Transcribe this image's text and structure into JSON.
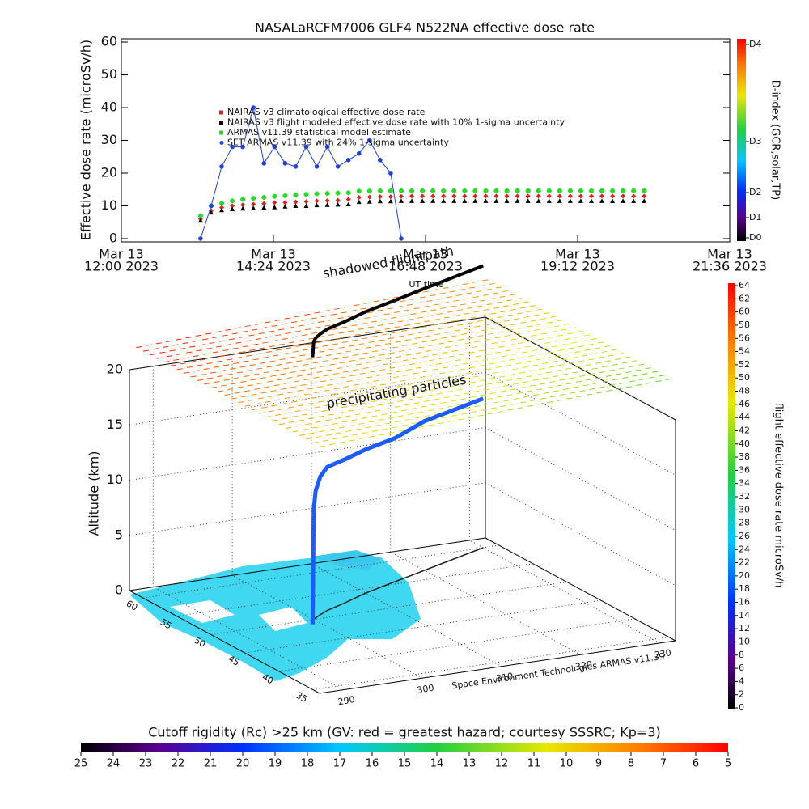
{
  "chart_data": [
    {
      "type": "line",
      "title": "NASALaRCFM7006  GLF4 N522NA effective dose rate",
      "y_label": "Effective dose rate (microSv/h)",
      "x": [
        "2023-03-13T13:15",
        "2023-03-13T13:25",
        "2023-03-13T13:35",
        "2023-03-13T13:45",
        "2023-03-13T13:55",
        "2023-03-13T14:05",
        "2023-03-13T14:15",
        "2023-03-13T14:25",
        "2023-03-13T14:35",
        "2023-03-13T14:45",
        "2023-03-13T14:55",
        "2023-03-13T15:05",
        "2023-03-13T15:15",
        "2023-03-13T15:25",
        "2023-03-13T15:35",
        "2023-03-13T15:45",
        "2023-03-13T15:55",
        "2023-03-13T16:05",
        "2023-03-13T16:15",
        "2023-03-13T16:25",
        "2023-03-13T16:35",
        "2023-03-13T16:45",
        "2023-03-13T16:55",
        "2023-03-13T17:05",
        "2023-03-13T17:15",
        "2023-03-13T17:25",
        "2023-03-13T17:35",
        "2023-03-13T17:45",
        "2023-03-13T17:55",
        "2023-03-13T18:05",
        "2023-03-13T18:15",
        "2023-03-13T18:25",
        "2023-03-13T18:35",
        "2023-03-13T18:45",
        "2023-03-13T18:55",
        "2023-03-13T19:05",
        "2023-03-13T19:15",
        "2023-03-13T19:25",
        "2023-03-13T19:35",
        "2023-03-13T19:45",
        "2023-03-13T19:55",
        "2023-03-13T20:05",
        "2023-03-13T20:15"
      ],
      "xlim": [
        "2023-03-13T12:00",
        "2023-03-13T21:36"
      ],
      "xticks": [
        {
          "value": "2023-03-13T12:00",
          "label": [
            "Mar 13",
            "12:00 2023"
          ]
        },
        {
          "value": "2023-03-13T14:24",
          "label": [
            "Mar 13",
            "14:24 2023"
          ]
        },
        {
          "value": "2023-03-13T16:48",
          "label": [
            "Mar 13",
            "16:48 2023"
          ]
        },
        {
          "value": "2023-03-13T19:12",
          "label": [
            "Mar 13",
            "19:12 2023"
          ]
        },
        {
          "value": "2023-03-13T21:36",
          "label": [
            "Mar 13",
            "21:36 2023"
          ]
        }
      ],
      "ylim": [
        -1,
        61
      ],
      "yticks": [
        0,
        10,
        20,
        30,
        40,
        50,
        60
      ],
      "series": [
        {
          "name": "NAIRAS v3 climatological effective dose rate",
          "color": "#e02020",
          "marker": "diamond",
          "values": [
            6,
            8.5,
            9.5,
            10,
            10.3,
            10.5,
            10.7,
            11,
            11,
            11.2,
            11.3,
            11.5,
            11.6,
            11.7,
            12,
            12.6,
            12.7,
            12.8,
            12.8,
            12.9,
            13,
            13,
            13,
            13,
            13,
            13,
            13,
            13,
            13,
            13,
            13,
            13,
            13,
            13,
            13,
            13,
            13,
            13,
            13,
            13,
            13,
            13,
            13
          ]
        },
        {
          "name": "NAIRAS v3 flight modeled effective dose rate with 10% 1-sigma uncertainty",
          "color": "#000000",
          "marker": "triangle",
          "values": [
            5.5,
            8,
            8.7,
            9,
            9.2,
            9.3,
            9.5,
            9.6,
            9.8,
            10,
            10,
            10.2,
            10.3,
            10.4,
            10.5,
            11.2,
            11.3,
            11.4,
            11.4,
            11.5,
            11.5,
            11.5,
            11.5,
            11.5,
            11.5,
            11.5,
            11.5,
            11.5,
            11.5,
            11.5,
            11.5,
            11.5,
            11.5,
            11.5,
            11.5,
            11.5,
            11.5,
            11.5,
            11.5,
            11.5,
            11.5,
            11.5,
            11.5
          ]
        },
        {
          "name": "ARMAS v11.39 statistical model estimate",
          "color": "#22dd22",
          "marker": "star",
          "values": [
            7,
            10,
            10.8,
            11.5,
            12,
            12.3,
            12.6,
            12.9,
            13.1,
            13.3,
            13.5,
            13.7,
            13.8,
            13.9,
            14,
            14.5,
            14.5,
            14.6,
            14.6,
            14.6,
            14.6,
            14.6,
            14.6,
            14.6,
            14.6,
            14.6,
            14.6,
            14.6,
            14.6,
            14.6,
            14.6,
            14.6,
            14.6,
            14.6,
            14.6,
            14.6,
            14.6,
            14.6,
            14.6,
            14.6,
            14.6,
            14.6,
            14.6
          ]
        },
        {
          "name": "SET ARMAS v11.39 with 24% 1-sigma uncertainty",
          "color": "#2040e0",
          "marker": "circle",
          "values": [
            0,
            10,
            22,
            28,
            28,
            40,
            23,
            28,
            23,
            22,
            28,
            22,
            28,
            22,
            24,
            26,
            30,
            24,
            20,
            0,
            null,
            null,
            null,
            null,
            null,
            null,
            null,
            null,
            null,
            null,
            null,
            null,
            null,
            null,
            null,
            null,
            null,
            null,
            null,
            null,
            null,
            null,
            null
          ]
        }
      ],
      "dindex": {
        "label": "D-index (GCR,solar,TP)",
        "ticks": [
          "D0",
          "D1",
          "D2",
          "D3",
          "D4"
        ]
      }
    },
    {
      "type": "flight3d",
      "annotations": [
        "shadowed flightpath",
        "UT time",
        "precipitating particles",
        "Space Environment Technologies ARMAS v11.39"
      ],
      "z_label": "Altitude (km)",
      "zlim": [
        0,
        20
      ],
      "zticks": [
        0,
        5,
        10,
        15,
        20
      ],
      "xlim": [
        287,
        332
      ],
      "xticks": [
        290,
        300,
        310,
        320,
        330
      ],
      "ylim": [
        34,
        62
      ],
      "yticks": [
        35,
        40,
        45,
        50,
        55,
        60
      ],
      "track": {
        "color": "#1a5cff",
        "lon": [
          299,
          299.2,
          299.4,
          299.6,
          299.8,
          300,
          300.5,
          301.5,
          303,
          306,
          310,
          315,
          320,
          325,
          330
        ],
        "lat": [
          49,
          49.2,
          49.4,
          49.6,
          49.8,
          50,
          50.3,
          50.8,
          51.5,
          52.5,
          54,
          55.5,
          57,
          58.5,
          60
        ],
        "alt": [
          0,
          2,
          4,
          6,
          8,
          10,
          11.5,
          12.5,
          13,
          13,
          13,
          13,
          13.5,
          13.5,
          13.5
        ]
      },
      "colorbar": {
        "label": "flight effective dose rate microSv/h",
        "lim": [
          0,
          64
        ],
        "ticks": [
          0,
          2,
          4,
          6,
          8,
          10,
          12,
          14,
          16,
          18,
          20,
          22,
          24,
          26,
          28,
          30,
          32,
          34,
          36,
          38,
          40,
          42,
          44,
          46,
          48,
          50,
          52,
          54,
          56,
          58,
          60,
          62,
          64
        ]
      }
    },
    {
      "type": "colorbar",
      "title": "Cutoff rigidity (Rc) >25 km (GV: red = greatest hazard; courtesy SSSRC; Kp=3)",
      "lim": [
        25,
        5
      ],
      "ticks": [
        25,
        24,
        23,
        22,
        21,
        20,
        19,
        18,
        17,
        16,
        15,
        14,
        13,
        12,
        11,
        10,
        9,
        8,
        7,
        6,
        5
      ]
    }
  ]
}
